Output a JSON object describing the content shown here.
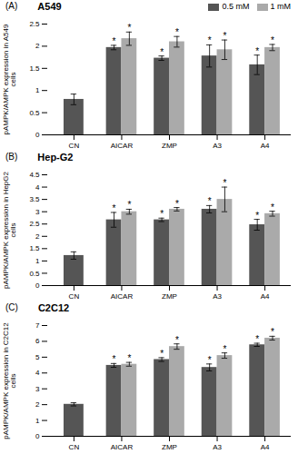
{
  "chart_data": [
    {
      "type": "bar",
      "title": "A549",
      "annotations": [
        "(A)"
      ],
      "y_label": "pAMPK/AMPK expression in A549\ncells",
      "categories": [
        "CN",
        "AICAR",
        "ZMP",
        "A3",
        "A4"
      ],
      "series": [
        {
          "name": "0.5 mM",
          "color": "#555555",
          "values": [
            0.8,
            1.97,
            1.73,
            1.78,
            1.58
          ],
          "errors": [
            0.12,
            0.05,
            0.05,
            0.25,
            0.22
          ],
          "significance": [
            null,
            "*",
            "*",
            "*",
            "*"
          ]
        },
        {
          "name": "1 mM",
          "color": "#aaaaaa",
          "values": [
            null,
            2.17,
            2.1,
            1.92,
            1.97
          ],
          "errors": [
            null,
            0.15,
            0.12,
            0.22,
            0.07
          ],
          "significance": [
            null,
            "*",
            "*",
            "*",
            "*"
          ]
        }
      ],
      "ylim": [
        0,
        2.5
      ],
      "yticks": [
        0,
        0.5,
        1,
        1.5,
        2,
        2.5
      ],
      "grid": false,
      "legend": "upper right"
    },
    {
      "type": "bar",
      "title": "Hep-G2",
      "annotations": [
        "(B)"
      ],
      "y_label": "pAMPK/AMPK expression in HepG2\ncells",
      "categories": [
        "CN",
        "AICAR",
        "ZMP",
        "A3",
        "A4"
      ],
      "series": [
        {
          "name": "0.5 mM",
          "color": "#555555",
          "values": [
            1.22,
            2.67,
            2.67,
            3.1,
            2.47
          ],
          "errors": [
            0.15,
            0.3,
            0.07,
            0.15,
            0.22
          ],
          "significance": [
            null,
            "*",
            "*",
            "*",
            "*"
          ]
        },
        {
          "name": "1 mM",
          "color": "#aaaaaa",
          "values": [
            null,
            3.0,
            3.1,
            3.5,
            2.92
          ],
          "errors": [
            null,
            0.1,
            0.07,
            0.5,
            0.1
          ],
          "significance": [
            null,
            "*",
            "*",
            "*",
            "*"
          ]
        }
      ],
      "ylim": [
        0,
        4.5
      ],
      "yticks": [
        0,
        0.5,
        1,
        1.5,
        2,
        2.5,
        3,
        3.5,
        4,
        4.5
      ],
      "grid": false
    },
    {
      "type": "bar",
      "title": "C2C12",
      "annotations": [
        "(C)"
      ],
      "y_label": "pAMPK/AMPK expression in C2C12\ncells",
      "categories": [
        "CN",
        "AICAR",
        "ZMP",
        "A3",
        "A4"
      ],
      "series": [
        {
          "name": "0.5 mM",
          "color": "#555555",
          "values": [
            2.02,
            4.48,
            4.85,
            4.35,
            5.78
          ],
          "errors": [
            0.1,
            0.12,
            0.12,
            0.22,
            0.1
          ],
          "significance": [
            null,
            "*",
            "*",
            "*",
            "*"
          ]
        },
        {
          "name": "1 mM",
          "color": "#aaaaaa",
          "values": [
            null,
            4.55,
            5.67,
            5.1,
            6.2
          ],
          "errors": [
            null,
            0.12,
            0.17,
            0.17,
            0.12
          ],
          "significance": [
            null,
            "*",
            "*",
            "*",
            "*"
          ]
        }
      ],
      "ylim": [
        0,
        7
      ],
      "yticks": [
        0,
        1,
        2,
        3,
        4,
        5,
        6,
        7
      ],
      "grid": false
    }
  ]
}
